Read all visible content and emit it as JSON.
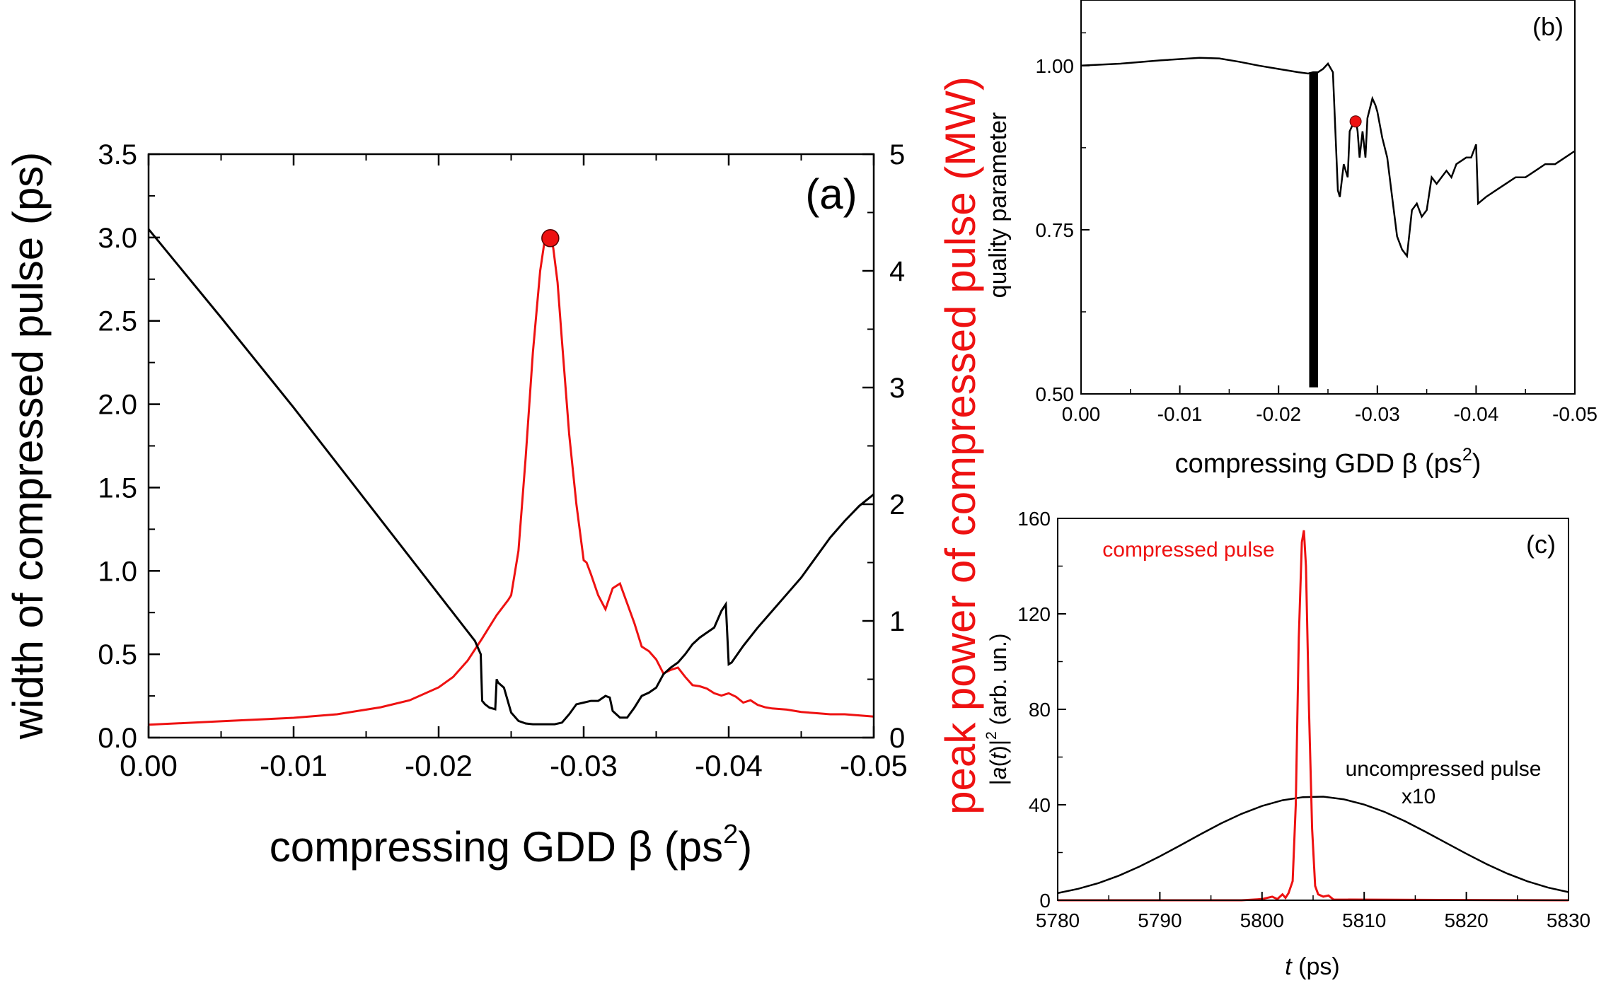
{
  "chart_data": [
    {
      "panel": "(a)",
      "type": "line",
      "xlabel": "compressing GDD β (ps",
      "xlabel_sup": "2",
      "xlabel_end": ")",
      "ylabel_left": "width of compressed pulse (ps)",
      "ylabel_right": "peak power of compressed pulse (MW)",
      "xlim": [
        0.0,
        -0.05
      ],
      "ylim_left": [
        0.0,
        3.5
      ],
      "ylim_right": [
        0,
        5
      ],
      "x_ticks": [
        "0.00",
        "-0.01",
        "-0.02",
        "-0.03",
        "-0.04",
        "-0.05"
      ],
      "x_tick_values": [
        0.0,
        -0.01,
        -0.02,
        -0.03,
        -0.04,
        -0.05
      ],
      "y_left_ticks": [
        "0.0",
        "0.5",
        "1.0",
        "1.5",
        "2.0",
        "2.5",
        "3.0",
        "3.5"
      ],
      "y_left_tick_values": [
        0.0,
        0.5,
        1.0,
        1.5,
        2.0,
        2.5,
        3.0,
        3.5
      ],
      "y_right_ticks": [
        "0",
        "1",
        "2",
        "3",
        "4",
        "5"
      ],
      "y_right_tick_values": [
        0,
        1,
        2,
        3,
        4,
        5
      ],
      "colors": {
        "width": "#000000",
        "power": "#ee1111",
        "marker": "#ee1111"
      },
      "series": [
        {
          "axis": "left",
          "x": [
            0.0,
            -0.005,
            -0.01,
            -0.015,
            -0.02,
            -0.0225,
            -0.0229,
            -0.023,
            -0.0232,
            -0.0235,
            -0.0239,
            -0.024,
            -0.0241,
            -0.0245,
            -0.025,
            -0.0255,
            -0.026,
            -0.0265,
            -0.027,
            -0.0275,
            -0.028,
            -0.0285,
            -0.029,
            -0.0295,
            -0.03,
            -0.0305,
            -0.031,
            -0.0315,
            -0.0318,
            -0.032,
            -0.0325,
            -0.033,
            -0.0335,
            -0.034,
            -0.0345,
            -0.035,
            -0.0355,
            -0.036,
            -0.0365,
            -0.037,
            -0.0375,
            -0.038,
            -0.0385,
            -0.039,
            -0.0395,
            -0.0398,
            -0.04,
            -0.0402,
            -0.041,
            -0.042,
            -0.043,
            -0.044,
            -0.045,
            -0.046,
            -0.047,
            -0.048,
            -0.049,
            -0.05
          ],
          "y": [
            3.05,
            2.52,
            1.98,
            1.42,
            0.86,
            0.58,
            0.5,
            0.22,
            0.2,
            0.18,
            0.17,
            0.35,
            0.33,
            0.3,
            0.15,
            0.1,
            0.085,
            0.08,
            0.08,
            0.08,
            0.08,
            0.09,
            0.14,
            0.2,
            0.21,
            0.22,
            0.22,
            0.25,
            0.24,
            0.16,
            0.12,
            0.12,
            0.18,
            0.25,
            0.27,
            0.3,
            0.38,
            0.42,
            0.45,
            0.5,
            0.56,
            0.6,
            0.63,
            0.66,
            0.76,
            0.8,
            0.44,
            0.45,
            0.55,
            0.66,
            0.76,
            0.86,
            0.96,
            1.08,
            1.2,
            1.3,
            1.39,
            1.46
          ]
        },
        {
          "axis": "right",
          "x": [
            0.0,
            -0.005,
            -0.01,
            -0.013,
            -0.016,
            -0.018,
            -0.02,
            -0.021,
            -0.022,
            -0.023,
            -0.024,
            -0.0248,
            -0.025,
            -0.0255,
            -0.026,
            -0.0265,
            -0.027,
            -0.0273,
            -0.0276,
            -0.0279,
            -0.0282,
            -0.0285,
            -0.029,
            -0.0295,
            -0.03,
            -0.0302,
            -0.0305,
            -0.031,
            -0.0315,
            -0.032,
            -0.0325,
            -0.033,
            -0.0335,
            -0.034,
            -0.0345,
            -0.035,
            -0.0355,
            -0.036,
            -0.0365,
            -0.037,
            -0.0375,
            -0.038,
            -0.0385,
            -0.039,
            -0.0395,
            -0.04,
            -0.0405,
            -0.041,
            -0.0415,
            -0.042,
            -0.0425,
            -0.043,
            -0.044,
            -0.045,
            -0.046,
            -0.047,
            -0.048,
            -0.049,
            -0.05
          ],
          "y": [
            0.11,
            0.14,
            0.17,
            0.2,
            0.26,
            0.32,
            0.43,
            0.52,
            0.66,
            0.85,
            1.05,
            1.18,
            1.22,
            1.6,
            2.4,
            3.3,
            4.0,
            4.25,
            4.28,
            4.2,
            3.9,
            3.4,
            2.6,
            2.0,
            1.52,
            1.5,
            1.4,
            1.22,
            1.1,
            1.28,
            1.32,
            1.15,
            0.98,
            0.78,
            0.74,
            0.67,
            0.55,
            0.58,
            0.6,
            0.52,
            0.45,
            0.44,
            0.42,
            0.38,
            0.36,
            0.38,
            0.35,
            0.3,
            0.32,
            0.28,
            0.26,
            0.25,
            0.24,
            0.22,
            0.21,
            0.2,
            0.2,
            0.19,
            0.18
          ]
        }
      ],
      "marker": {
        "x": -0.0277,
        "y_right": 4.28
      },
      "annotation": "(a)"
    },
    {
      "panel": "(b)",
      "type": "line",
      "xlabel": "compressing GDD β (ps",
      "xlabel_sup": "2",
      "xlabel_end": ")",
      "ylabel": "quality parameter",
      "xlim": [
        0.0,
        -0.05
      ],
      "ylim": [
        0.5,
        1.1
      ],
      "x_ticks": [
        "0.00",
        "-0.01",
        "-0.02",
        "-0.03",
        "-0.04",
        "-0.05"
      ],
      "x_tick_values": [
        0.0,
        -0.01,
        -0.02,
        -0.03,
        -0.04,
        -0.05
      ],
      "y_ticks": [
        "0.50",
        "0.75",
        "1.00"
      ],
      "y_tick_values": [
        0.5,
        0.75,
        1.0
      ],
      "colors": {
        "line": "#000000",
        "marker": "#ee1111"
      },
      "series": [
        {
          "x": [
            0.0,
            -0.004,
            -0.008,
            -0.012,
            -0.014,
            -0.016,
            -0.018,
            -0.02,
            -0.022,
            -0.023,
            -0.0235,
            -0.024,
            -0.0245,
            -0.025,
            -0.0255,
            -0.026,
            -0.0262,
            -0.0266,
            -0.027,
            -0.0272,
            -0.0275,
            -0.0278,
            -0.028,
            -0.0282,
            -0.0285,
            -0.0288,
            -0.029,
            -0.0295,
            -0.0298,
            -0.03,
            -0.0305,
            -0.031,
            -0.0315,
            -0.032,
            -0.0325,
            -0.033,
            -0.0335,
            -0.034,
            -0.0345,
            -0.035,
            -0.0355,
            -0.036,
            -0.037,
            -0.0375,
            -0.038,
            -0.039,
            -0.0395,
            -0.04,
            -0.0402,
            -0.041,
            -0.042,
            -0.043,
            -0.044,
            -0.045,
            -0.046,
            -0.047,
            -0.048,
            -0.049,
            -0.05
          ],
          "y": [
            1.0,
            1.003,
            1.008,
            1.012,
            1.011,
            1.006,
            1.0,
            0.995,
            0.99,
            0.988,
            0.99,
            0.99,
            0.995,
            1.003,
            0.99,
            0.81,
            0.8,
            0.85,
            0.83,
            0.9,
            0.91,
            0.92,
            0.9,
            0.86,
            0.9,
            0.86,
            0.92,
            0.95,
            0.94,
            0.93,
            0.89,
            0.86,
            0.8,
            0.74,
            0.72,
            0.71,
            0.78,
            0.79,
            0.77,
            0.78,
            0.83,
            0.82,
            0.84,
            0.83,
            0.85,
            0.86,
            0.86,
            0.88,
            0.79,
            0.8,
            0.81,
            0.82,
            0.83,
            0.83,
            0.84,
            0.85,
            0.85,
            0.86,
            0.87
          ]
        }
      ],
      "dense_band": {
        "x_range": [
          -0.0231,
          -0.024
        ],
        "y_low": 0.51,
        "y_high": 0.99
      },
      "marker": {
        "x": -0.0278,
        "y": 0.915
      },
      "annotation": "(b)"
    },
    {
      "panel": "(c)",
      "type": "line",
      "xlabel_italic": "t",
      "xlabel_rest": " (ps)",
      "ylabel_pre": "|",
      "ylabel_italic_a": "a",
      "ylabel_mid": "(",
      "ylabel_italic_t": "t",
      "ylabel_close": ")|",
      "ylabel_sup": "2",
      "ylabel_rest": " (arb. un.)",
      "xlim": [
        5780,
        5830
      ],
      "ylim": [
        0,
        160
      ],
      "x_ticks": [
        "5780",
        "5790",
        "5800",
        "5810",
        "5820",
        "5830"
      ],
      "x_tick_values": [
        5780,
        5790,
        5800,
        5810,
        5820,
        5830
      ],
      "y_ticks": [
        "0",
        "40",
        "80",
        "120",
        "160"
      ],
      "y_tick_values": [
        0,
        40,
        80,
        120,
        160
      ],
      "colors": {
        "compressed": "#ee1111",
        "uncompressed": "#000000"
      },
      "series": [
        {
          "name": "compressed pulse",
          "x": [
            5780,
            5798,
            5800,
            5801,
            5801.5,
            5802,
            5802.3,
            5802.6,
            5803,
            5803.3,
            5803.6,
            5803.9,
            5804.1,
            5804.3,
            5804.6,
            5804.9,
            5805.2,
            5805.5,
            5806,
            5806.5,
            5807,
            5830
          ],
          "y": [
            0,
            0,
            0.5,
            1.5,
            0.5,
            2.5,
            1,
            3,
            8,
            40,
            110,
            150,
            155,
            140,
            80,
            30,
            6,
            2.5,
            1.5,
            2,
            0.3,
            0
          ]
        },
        {
          "name": "uncompressed pulse",
          "annotation": "x10",
          "x": [
            5780,
            5782,
            5784,
            5786,
            5788,
            5790,
            5792,
            5794,
            5796,
            5798,
            5800,
            5802,
            5804,
            5806,
            5808,
            5810,
            5812,
            5814,
            5816,
            5818,
            5820,
            5822,
            5824,
            5826,
            5828,
            5830
          ],
          "y": [
            3.0,
            4.8,
            7.2,
            10.3,
            14.1,
            18.4,
            23.0,
            27.7,
            32.2,
            36.2,
            39.5,
            41.9,
            43.2,
            43.4,
            42.3,
            40.1,
            37.0,
            33.1,
            28.7,
            24.1,
            19.5,
            15.1,
            11.2,
            7.9,
            5.3,
            3.4
          ]
        }
      ],
      "annotation": "(c)"
    }
  ]
}
